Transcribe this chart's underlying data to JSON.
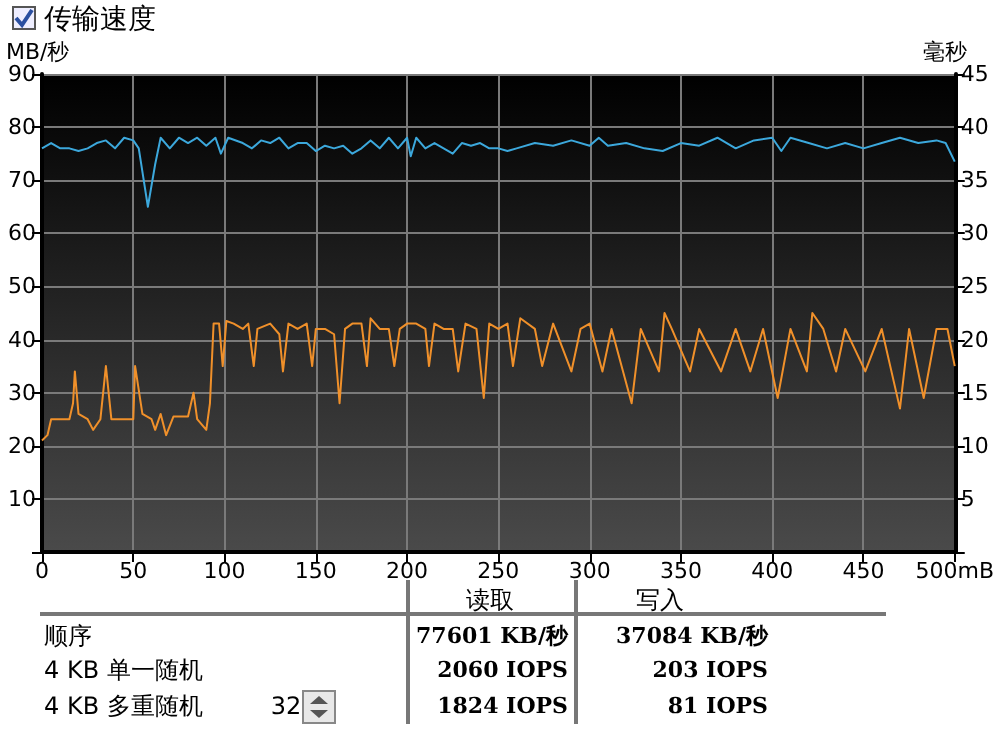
{
  "chart_data": {
    "type": "line",
    "ylabel": "MB/秒",
    "y2label": "毫秒",
    "xlim": [
      0,
      500
    ],
    "xticks": [
      0,
      50,
      100,
      150,
      200,
      250,
      300,
      350,
      400,
      450,
      {
        "value": 500,
        "label": "500mB"
      }
    ],
    "ylim": [
      0,
      90
    ],
    "yticks": [
      {
        "value": 0,
        "label": null
      },
      10,
      20,
      30,
      40,
      50,
      60,
      70,
      80,
      90
    ],
    "y2lim": [
      0,
      45
    ],
    "y2ticks": [
      {
        "value": 0,
        "label": null
      },
      5,
      10,
      15,
      20,
      25,
      30,
      35,
      40,
      45
    ],
    "grid": true,
    "marker": "none",
    "line_style": "solid",
    "series": [
      {
        "color": "#3ca8dc",
        "x": [
          0,
          5,
          10,
          15,
          20,
          25,
          30,
          35,
          40,
          45,
          50,
          53,
          58,
          62,
          65,
          70,
          75,
          80,
          85,
          90,
          95,
          98,
          102,
          110,
          115,
          120,
          125,
          130,
          135,
          140,
          145,
          150,
          155,
          160,
          165,
          170,
          175,
          180,
          185,
          190,
          195,
          200,
          202,
          205,
          210,
          215,
          220,
          225,
          230,
          235,
          240,
          245,
          250,
          255,
          260,
          270,
          280,
          290,
          300,
          305,
          310,
          320,
          330,
          340,
          350,
          360,
          370,
          380,
          390,
          400,
          405,
          410,
          420,
          430,
          440,
          450,
          460,
          470,
          480,
          490,
          495,
          500
        ],
        "values": [
          76,
          77,
          76,
          76,
          75.5,
          76,
          77,
          77.5,
          76,
          78,
          77.5,
          76,
          65,
          73,
          78,
          76,
          78,
          77,
          78,
          76.5,
          78,
          75,
          78,
          77,
          76,
          77.5,
          77,
          78,
          76,
          77,
          77,
          75.5,
          76.5,
          76,
          76.5,
          75,
          76,
          77.5,
          76,
          78,
          76,
          78,
          74.5,
          78,
          76,
          77,
          76,
          75,
          77,
          76.5,
          77,
          76,
          76,
          75.5,
          76,
          77,
          76.5,
          77.5,
          76.5,
          78,
          76.5,
          77,
          76,
          75.5,
          77,
          76.5,
          78,
          76,
          77.5,
          78,
          75.5,
          78,
          77,
          76,
          77,
          76,
          77,
          78,
          77,
          77.5,
          77,
          73.5
        ]
      },
      {
        "color": "#f0902a",
        "x": [
          0,
          3,
          5,
          10,
          15,
          17,
          18,
          20,
          25,
          28,
          32,
          35,
          38,
          45,
          50,
          51,
          55,
          60,
          62,
          65,
          68,
          72,
          80,
          83,
          85,
          90,
          92,
          94,
          97,
          99,
          101,
          105,
          110,
          113,
          116,
          118,
          125,
          130,
          132,
          135,
          140,
          145,
          148,
          150,
          155,
          160,
          163,
          166,
          170,
          175,
          178,
          180,
          185,
          190,
          193,
          196,
          200,
          205,
          210,
          212,
          215,
          220,
          225,
          228,
          232,
          238,
          242,
          245,
          250,
          255,
          258,
          262,
          270,
          274,
          280,
          290,
          295,
          300,
          307,
          312,
          323,
          328,
          338,
          341,
          345,
          355,
          360,
          372,
          380,
          388,
          395,
          403,
          410,
          419,
          422,
          428,
          435,
          440,
          451,
          460,
          470,
          475,
          483,
          490,
          496,
          500
        ],
        "values": [
          21,
          22,
          25,
          25,
          25,
          28,
          34,
          26,
          25,
          23,
          25,
          35,
          25,
          25,
          25,
          35,
          26,
          25,
          23,
          26,
          22,
          25.5,
          25.5,
          30,
          25,
          23,
          28,
          43,
          43,
          35,
          43.5,
          43,
          42,
          43,
          35,
          42,
          43,
          41,
          34,
          43,
          42,
          43,
          35,
          42,
          42,
          41,
          28,
          42,
          43,
          43,
          35,
          44,
          42,
          42,
          35,
          42,
          43,
          43,
          42,
          35,
          43,
          42,
          42,
          34,
          43,
          42,
          29,
          43,
          42,
          43,
          35,
          44,
          42,
          35,
          43,
          34,
          42,
          43,
          34,
          42,
          28,
          42,
          34,
          45,
          42,
          34,
          42,
          34,
          42,
          34,
          42,
          29,
          42,
          34,
          45,
          42,
          34,
          42,
          34,
          42,
          27,
          42,
          29,
          42,
          42,
          35
        ]
      }
    ],
    "annotations": [
      "传输速度",
      "读取",
      "写入",
      "顺序",
      "77601 KB/秒",
      "37084 KB/秒",
      "4 KB 单一随机",
      "2060 IOPS",
      "203 IOPS",
      "4 KB 多重随机",
      "1824 IOPS",
      "81 IOPS",
      "32"
    ]
  }
}
